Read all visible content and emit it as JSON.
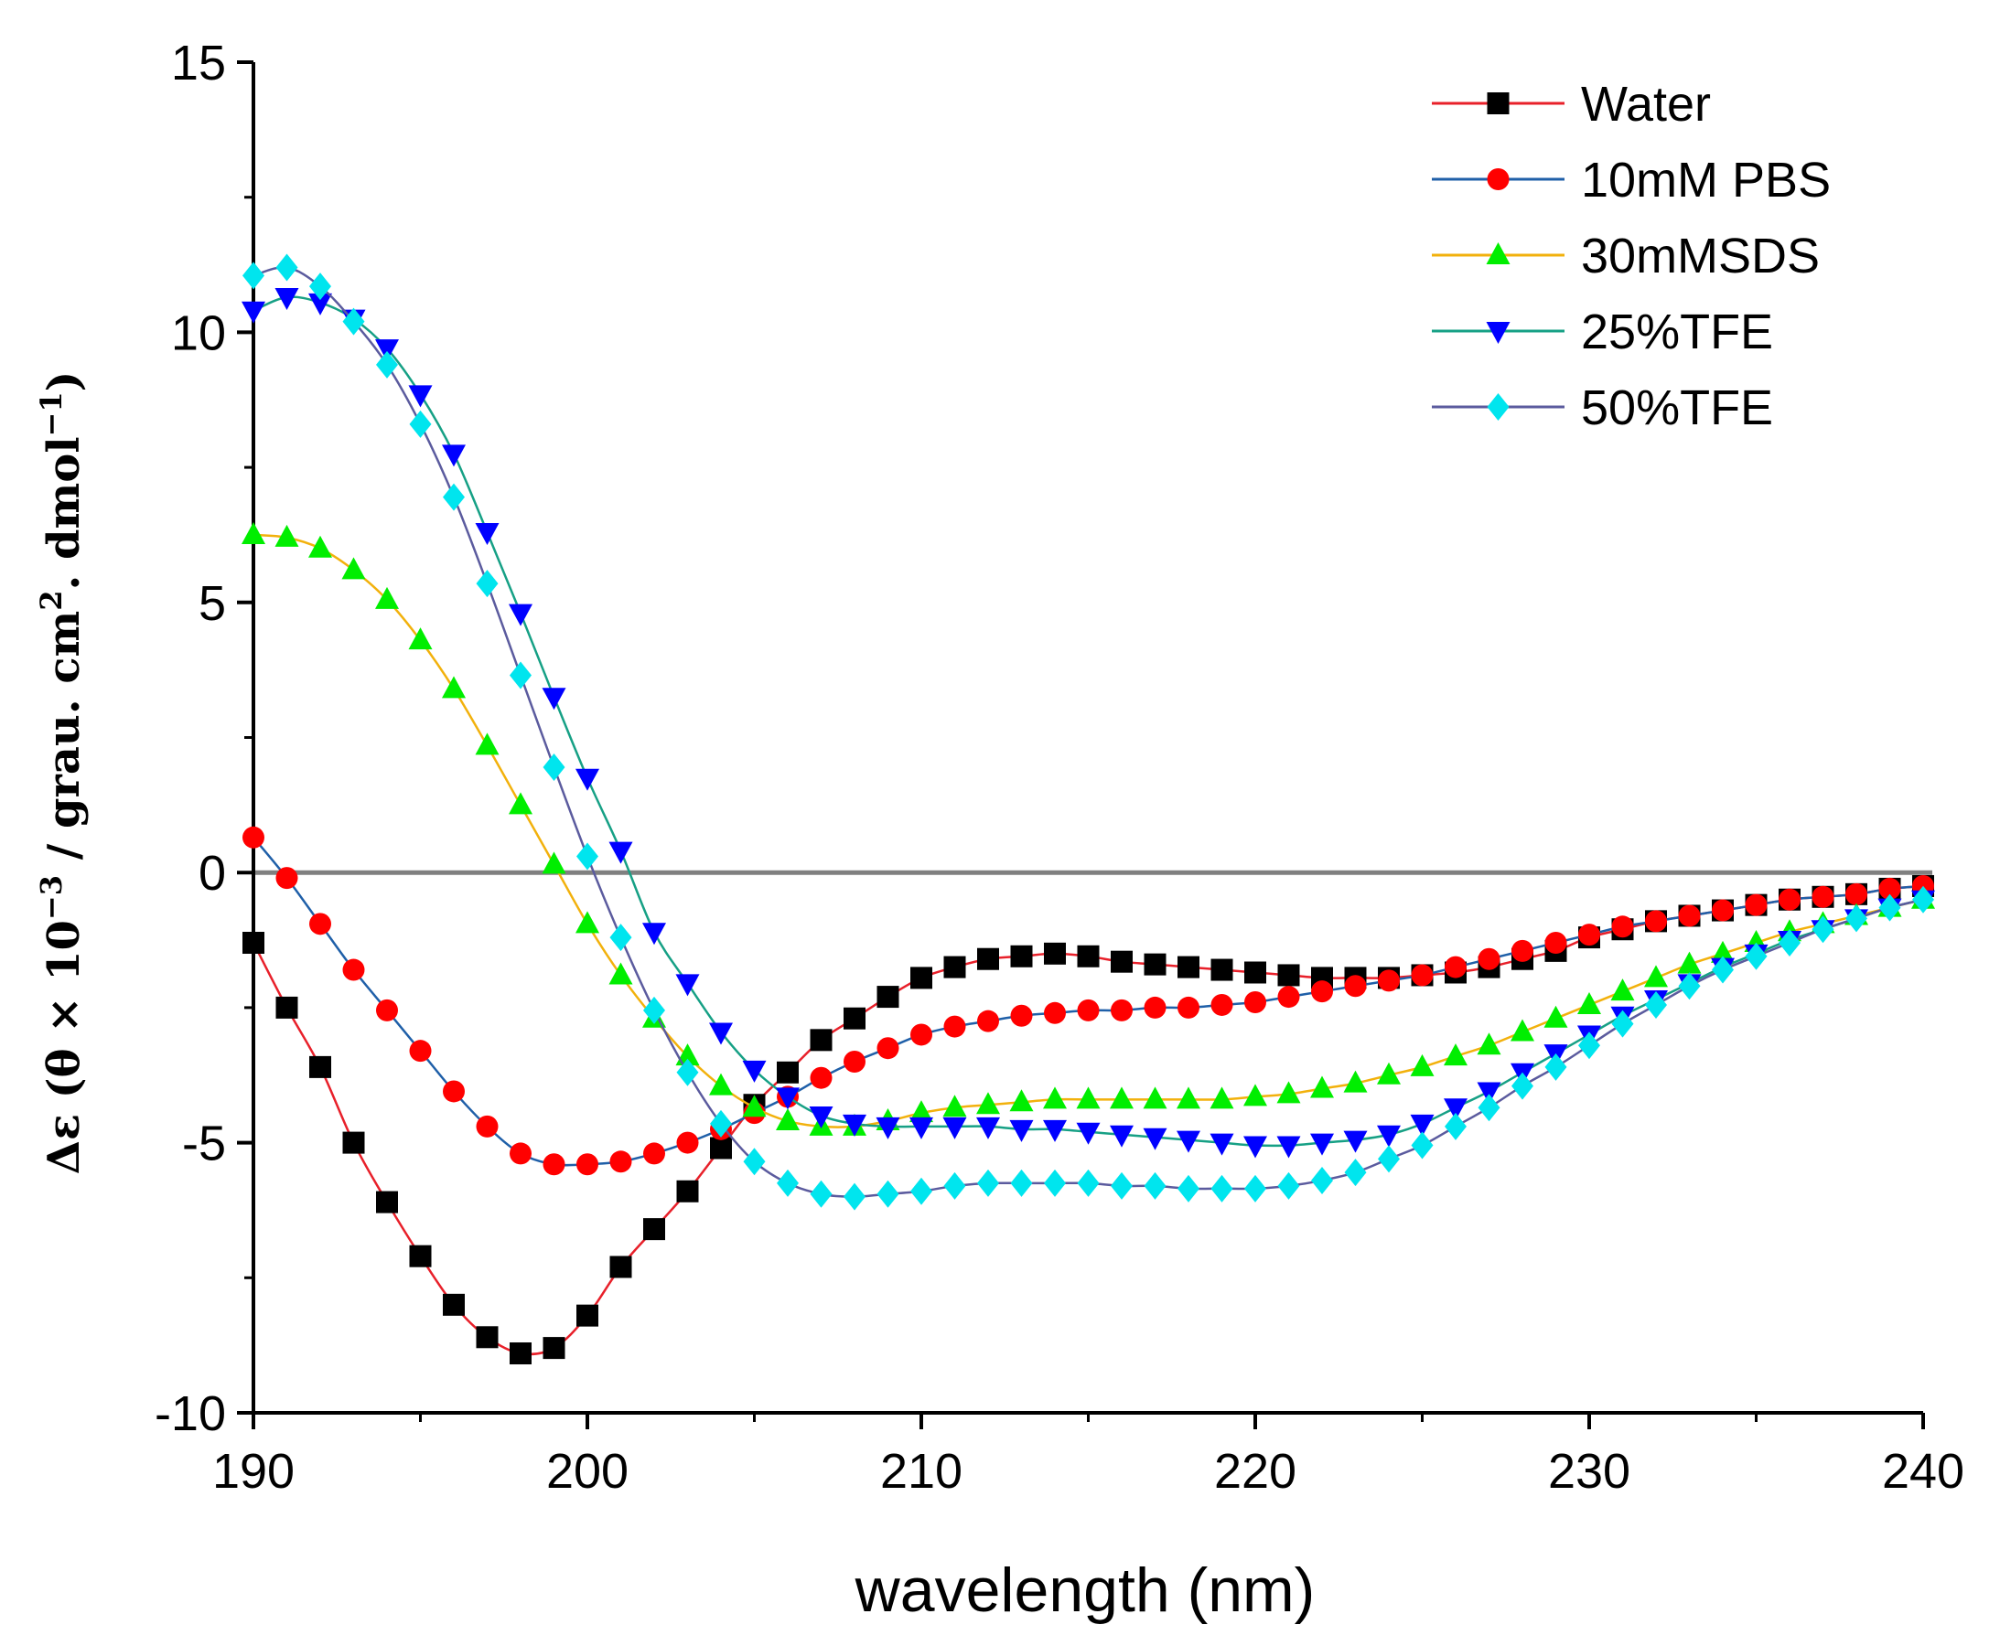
{
  "chart_data": {
    "type": "line",
    "title": "",
    "xlabel": "wavelength (nm)",
    "ylabel": {
      "prefix": "Δε (θ × 10",
      "exp1": "−3",
      "mid": " / grau. cm",
      "exp2": "2",
      "mid2": ". dmol",
      "exp3": "−1",
      "suffix": ")"
    },
    "xlim": [
      190,
      240
    ],
    "ylim": [
      -10,
      15
    ],
    "xticks": [
      190,
      200,
      210,
      220,
      230,
      240
    ],
    "yticks": [
      -10,
      -5,
      0,
      5,
      10,
      15
    ],
    "ytick_labels": [
      "-10",
      "-5",
      "0",
      "5",
      "10",
      "15"
    ],
    "zero_line": true,
    "legend_position": "top-right",
    "x": [
      190,
      191,
      192,
      193,
      194,
      195,
      196,
      197,
      198,
      199,
      200,
      201,
      202,
      203,
      204,
      205,
      206,
      207,
      208,
      209,
      210,
      211,
      212,
      213,
      214,
      215,
      216,
      217,
      218,
      219,
      220,
      221,
      222,
      223,
      224,
      225,
      226,
      227,
      228,
      229,
      230,
      231,
      232,
      233,
      234,
      235,
      236,
      237,
      238,
      239,
      240
    ],
    "series": [
      {
        "name": "Water",
        "line_color": "#e8202a",
        "marker_color": "#000000",
        "marker": "square",
        "values": [
          -1.3,
          -2.5,
          -3.6,
          -5.0,
          -6.1,
          -7.1,
          -8.0,
          -8.6,
          -8.9,
          -8.8,
          -8.2,
          -7.3,
          -6.6,
          -5.9,
          -5.1,
          -4.3,
          -3.7,
          -3.1,
          -2.7,
          -2.3,
          -1.95,
          -1.75,
          -1.6,
          -1.55,
          -1.5,
          -1.55,
          -1.65,
          -1.7,
          -1.75,
          -1.8,
          -1.85,
          -1.9,
          -1.95,
          -1.95,
          -1.95,
          -1.9,
          -1.85,
          -1.75,
          -1.6,
          -1.45,
          -1.2,
          -1.05,
          -0.9,
          -0.8,
          -0.7,
          -0.6,
          -0.5,
          -0.45,
          -0.4,
          -0.3,
          -0.25
        ]
      },
      {
        "name": "10mM PBS",
        "line_color": "#1f5fa8",
        "marker_color": "#ff0000",
        "marker": "circle",
        "values": [
          0.65,
          -0.1,
          -0.95,
          -1.8,
          -2.55,
          -3.3,
          -4.05,
          -4.7,
          -5.2,
          -5.4,
          -5.4,
          -5.35,
          -5.2,
          -5.0,
          -4.75,
          -4.45,
          -4.15,
          -3.8,
          -3.5,
          -3.25,
          -3.0,
          -2.85,
          -2.75,
          -2.65,
          -2.6,
          -2.55,
          -2.55,
          -2.5,
          -2.5,
          -2.45,
          -2.4,
          -2.3,
          -2.2,
          -2.1,
          -2.0,
          -1.9,
          -1.75,
          -1.6,
          -1.45,
          -1.3,
          -1.15,
          -1.0,
          -0.9,
          -0.8,
          -0.7,
          -0.6,
          -0.5,
          -0.45,
          -0.4,
          -0.3,
          -0.25
        ]
      },
      {
        "name": "30mMSDS",
        "line_color": "#f2b10c",
        "marker_color": "#00ee00",
        "marker": "triangle-up",
        "values": [
          6.25,
          6.2,
          6.0,
          5.6,
          5.05,
          4.3,
          3.4,
          2.35,
          1.25,
          0.15,
          -0.95,
          -1.9,
          -2.7,
          -3.4,
          -3.95,
          -4.35,
          -4.6,
          -4.7,
          -4.7,
          -4.6,
          -4.45,
          -4.35,
          -4.3,
          -4.25,
          -4.2,
          -4.2,
          -4.2,
          -4.2,
          -4.2,
          -4.2,
          -4.15,
          -4.1,
          -4.0,
          -3.9,
          -3.75,
          -3.6,
          -3.4,
          -3.2,
          -2.95,
          -2.7,
          -2.45,
          -2.2,
          -1.95,
          -1.7,
          -1.5,
          -1.3,
          -1.1,
          -0.95,
          -0.8,
          -0.65,
          -0.5
        ]
      },
      {
        "name": "25%TFE",
        "line_color": "#16a085",
        "marker_color": "#0000ff",
        "marker": "triangle-down",
        "values": [
          10.4,
          10.65,
          10.55,
          10.25,
          9.7,
          8.85,
          7.75,
          6.3,
          4.8,
          3.25,
          1.75,
          0.4,
          -1.1,
          -2.05,
          -2.95,
          -3.65,
          -4.15,
          -4.5,
          -4.65,
          -4.7,
          -4.7,
          -4.7,
          -4.7,
          -4.75,
          -4.75,
          -4.8,
          -4.85,
          -4.9,
          -4.95,
          -5.0,
          -5.05,
          -5.05,
          -5.0,
          -4.95,
          -4.85,
          -4.65,
          -4.35,
          -4.05,
          -3.7,
          -3.35,
          -3.0,
          -2.65,
          -2.35,
          -2.05,
          -1.75,
          -1.5,
          -1.25,
          -1.05,
          -0.85,
          -0.65,
          -0.5
        ]
      },
      {
        "name": "50%TFE",
        "line_color": "#5b5b9e",
        "marker_color": "#00e5ee",
        "marker": "diamond",
        "values": [
          11.05,
          11.2,
          10.85,
          10.2,
          9.4,
          8.3,
          6.95,
          5.35,
          3.65,
          1.95,
          0.3,
          -1.2,
          -2.55,
          -3.7,
          -4.65,
          -5.35,
          -5.75,
          -5.95,
          -6.0,
          -5.95,
          -5.9,
          -5.8,
          -5.75,
          -5.75,
          -5.75,
          -5.75,
          -5.8,
          -5.8,
          -5.85,
          -5.85,
          -5.85,
          -5.8,
          -5.7,
          -5.55,
          -5.3,
          -5.05,
          -4.7,
          -4.35,
          -3.95,
          -3.6,
          -3.2,
          -2.8,
          -2.45,
          -2.1,
          -1.8,
          -1.55,
          -1.3,
          -1.05,
          -0.85,
          -0.65,
          -0.5
        ]
      }
    ]
  }
}
